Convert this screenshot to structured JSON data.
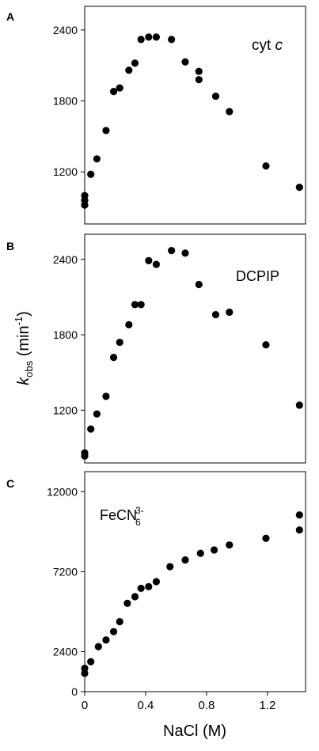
{
  "figure": {
    "x_axis_label": "NaCl (M)",
    "y_axis_label": {
      "main": "k",
      "sub": "obs",
      "unit_open": " (min",
      "unit_sup": "-1",
      "unit_close": ")"
    },
    "x_ticks": [
      "0",
      "0.4",
      "0.8",
      "1.2"
    ]
  },
  "chart_data": [
    {
      "type": "scatter",
      "panel_letter": "A",
      "annotation": {
        "main": "cyt ",
        "italic": "c"
      },
      "xlim": [
        0,
        1.45
      ],
      "ylim": [
        760,
        2600
      ],
      "y_ticks": [
        1200,
        1800,
        2400
      ],
      "y_tick_labels": [
        "1200",
        "1800",
        "2400"
      ],
      "points": [
        [
          0,
          1000
        ],
        [
          0,
          960
        ],
        [
          0,
          920
        ],
        [
          0.04,
          1180
        ],
        [
          0.08,
          1310
        ],
        [
          0.14,
          1550
        ],
        [
          0.19,
          1880
        ],
        [
          0.23,
          1910
        ],
        [
          0.29,
          2060
        ],
        [
          0.33,
          2120
        ],
        [
          0.37,
          2320
        ],
        [
          0.42,
          2340
        ],
        [
          0.47,
          2340
        ],
        [
          0.57,
          2320
        ],
        [
          0.66,
          2130
        ],
        [
          0.75,
          2050
        ],
        [
          0.75,
          1980
        ],
        [
          0.86,
          1840
        ],
        [
          0.95,
          1710
        ],
        [
          1.19,
          1250
        ],
        [
          1.41,
          1070
        ]
      ]
    },
    {
      "type": "scatter",
      "panel_letter": "B",
      "annotation": {
        "main": "DCPIP",
        "italic": ""
      },
      "xlim": [
        0,
        1.45
      ],
      "ylim": [
        780,
        2600
      ],
      "y_ticks": [
        1200,
        1800,
        2400
      ],
      "y_tick_labels": [
        "1200",
        "1800",
        "2400"
      ],
      "points": [
        [
          0,
          860
        ],
        [
          0,
          835
        ],
        [
          0.04,
          1050
        ],
        [
          0.08,
          1170
        ],
        [
          0.14,
          1310
        ],
        [
          0.19,
          1620
        ],
        [
          0.23,
          1740
        ],
        [
          0.29,
          1880
        ],
        [
          0.33,
          2040
        ],
        [
          0.37,
          2040
        ],
        [
          0.42,
          2390
        ],
        [
          0.47,
          2360
        ],
        [
          0.57,
          2470
        ],
        [
          0.66,
          2450
        ],
        [
          0.75,
          2200
        ],
        [
          0.86,
          1960
        ],
        [
          0.95,
          1980
        ],
        [
          1.19,
          1720
        ],
        [
          1.41,
          1240
        ]
      ]
    },
    {
      "type": "scatter",
      "panel_letter": "C",
      "annotation": {
        "main": "FeCN",
        "sub": "6",
        "sup": "3-"
      },
      "xlim": [
        0,
        1.45
      ],
      "ylim": [
        0,
        13200
      ],
      "y_ticks": [
        0,
        2400,
        7200,
        12000
      ],
      "y_tick_labels": [
        "0",
        "2400",
        "7200",
        "12000"
      ],
      "points": [
        [
          0,
          1400
        ],
        [
          0,
          1100
        ],
        [
          0.04,
          1800
        ],
        [
          0.09,
          2700
        ],
        [
          0.14,
          3100
        ],
        [
          0.19,
          3600
        ],
        [
          0.23,
          4200
        ],
        [
          0.28,
          5300
        ],
        [
          0.33,
          5700
        ],
        [
          0.37,
          6200
        ],
        [
          0.42,
          6300
        ],
        [
          0.47,
          6600
        ],
        [
          0.56,
          7500
        ],
        [
          0.66,
          7900
        ],
        [
          0.76,
          8300
        ],
        [
          0.85,
          8500
        ],
        [
          0.95,
          8800
        ],
        [
          1.19,
          9200
        ],
        [
          1.41,
          10600
        ],
        [
          1.41,
          9700
        ]
      ]
    }
  ]
}
